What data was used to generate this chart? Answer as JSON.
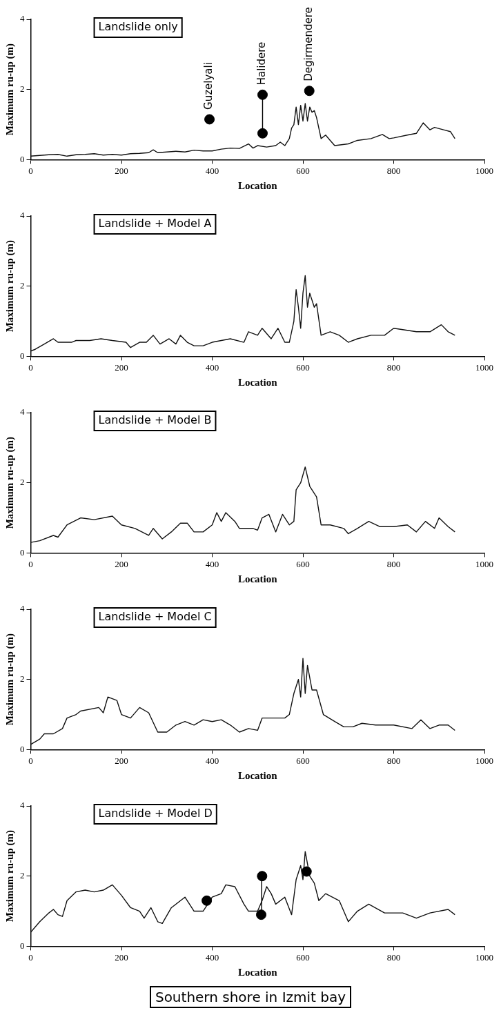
{
  "chart_data": [
    {
      "type": "line",
      "title": "Landslide only",
      "xlabel": "Location",
      "ylabel": "Maximum ru-up (m)",
      "xlim": [
        0,
        1000
      ],
      "xticks": [
        0,
        200,
        400,
        600,
        800,
        1000
      ],
      "ylim": [
        0,
        4
      ],
      "yticks": [
        0,
        2,
        4
      ],
      "annotations": [
        {
          "text": "Guzelyali",
          "x": 394,
          "y": 1.15
        },
        {
          "text": "Halidere",
          "x": 511,
          "y": 1.85
        },
        {
          "text": "Degirmendere",
          "x": 614,
          "y": 1.96
        }
      ],
      "series": [
        {
          "type": "line",
          "color": "#111111",
          "x": [
            0,
            20,
            40,
            60,
            80,
            100,
            120,
            140,
            160,
            180,
            200,
            220,
            240,
            260,
            270,
            280,
            300,
            320,
            340,
            360,
            380,
            400,
            420,
            440,
            460,
            480,
            490,
            500,
            520,
            540,
            550,
            560,
            570,
            575,
            580,
            585,
            590,
            595,
            600,
            605,
            610,
            615,
            620,
            625,
            630,
            640,
            650,
            660,
            670,
            700,
            720,
            750,
            775,
            790,
            800,
            830,
            850,
            865,
            880,
            890,
            910,
            925,
            935
          ],
          "values": [
            0.1,
            0.12,
            0.14,
            0.15,
            0.1,
            0.14,
            0.15,
            0.17,
            0.13,
            0.15,
            0.13,
            0.17,
            0.18,
            0.2,
            0.28,
            0.2,
            0.22,
            0.24,
            0.22,
            0.27,
            0.25,
            0.25,
            0.3,
            0.33,
            0.32,
            0.45,
            0.33,
            0.4,
            0.36,
            0.4,
            0.5,
            0.4,
            0.6,
            0.9,
            1.0,
            1.5,
            1.0,
            1.55,
            1.1,
            1.6,
            1.1,
            1.5,
            1.35,
            1.4,
            1.2,
            0.6,
            0.7,
            0.55,
            0.4,
            0.45,
            0.55,
            0.6,
            0.72,
            0.6,
            0.62,
            0.7,
            0.75,
            1.05,
            0.85,
            0.92,
            0.85,
            0.8,
            0.6
          ]
        },
        {
          "type": "scatter",
          "color": "#000000",
          "marker": "circle",
          "x": [
            394,
            511,
            511,
            614
          ],
          "values": [
            1.15,
            1.85,
            0.75,
            1.96
          ]
        },
        {
          "type": "line",
          "color": "#000000",
          "x": [
            511,
            511
          ],
          "values": [
            0.75,
            1.85
          ]
        }
      ]
    },
    {
      "type": "line",
      "title": "Landslide + Model A",
      "xlabel": "Location",
      "ylabel": "Maximum ru-up (m)",
      "xlim": [
        0,
        1000
      ],
      "xticks": [
        0,
        200,
        400,
        600,
        800,
        1000
      ],
      "ylim": [
        0,
        4
      ],
      "yticks": [
        0,
        2,
        4
      ],
      "series": [
        {
          "type": "line",
          "color": "#111111",
          "x": [
            0,
            10,
            30,
            50,
            60,
            90,
            100,
            130,
            155,
            180,
            210,
            220,
            240,
            255,
            270,
            285,
            305,
            320,
            330,
            345,
            360,
            380,
            400,
            440,
            470,
            480,
            500,
            510,
            530,
            545,
            560,
            570,
            580,
            585,
            590,
            595,
            600,
            605,
            610,
            615,
            625,
            630,
            640,
            660,
            680,
            700,
            720,
            750,
            780,
            800,
            850,
            880,
            905,
            920,
            935
          ],
          "values": [
            0.15,
            0.2,
            0.35,
            0.5,
            0.4,
            0.4,
            0.45,
            0.45,
            0.5,
            0.45,
            0.4,
            0.25,
            0.4,
            0.4,
            0.6,
            0.35,
            0.5,
            0.35,
            0.6,
            0.4,
            0.3,
            0.3,
            0.4,
            0.5,
            0.4,
            0.7,
            0.6,
            0.8,
            0.5,
            0.8,
            0.4,
            0.4,
            1.0,
            1.9,
            1.4,
            0.8,
            1.8,
            2.3,
            1.4,
            1.8,
            1.4,
            1.5,
            0.6,
            0.7,
            0.6,
            0.4,
            0.5,
            0.6,
            0.6,
            0.8,
            0.7,
            0.7,
            0.9,
            0.7,
            0.6
          ]
        }
      ]
    },
    {
      "type": "line",
      "title": "Landslide + Model B",
      "xlabel": "Location",
      "ylabel": "Maximum ru-up (m)",
      "xlim": [
        0,
        1000
      ],
      "xticks": [
        0,
        200,
        400,
        600,
        800,
        1000
      ],
      "ylim": [
        0,
        4
      ],
      "yticks": [
        0,
        2,
        4
      ],
      "series": [
        {
          "type": "line",
          "color": "#111111",
          "x": [
            0,
            20,
            50,
            60,
            80,
            110,
            140,
            180,
            200,
            230,
            260,
            270,
            290,
            310,
            330,
            345,
            360,
            380,
            400,
            410,
            420,
            430,
            450,
            460,
            490,
            500,
            510,
            525,
            540,
            555,
            570,
            580,
            585,
            595,
            605,
            615,
            630,
            640,
            660,
            690,
            700,
            720,
            745,
            770,
            800,
            830,
            850,
            870,
            890,
            900,
            920,
            935
          ],
          "values": [
            0.3,
            0.35,
            0.5,
            0.45,
            0.8,
            1.0,
            0.95,
            1.05,
            0.8,
            0.7,
            0.5,
            0.7,
            0.4,
            0.6,
            0.85,
            0.85,
            0.6,
            0.6,
            0.8,
            1.15,
            0.9,
            1.15,
            0.9,
            0.7,
            0.7,
            0.65,
            1.0,
            1.1,
            0.6,
            1.1,
            0.8,
            0.9,
            1.8,
            2.0,
            2.45,
            1.9,
            1.6,
            0.8,
            0.8,
            0.7,
            0.55,
            0.7,
            0.9,
            0.75,
            0.75,
            0.8,
            0.6,
            0.9,
            0.7,
            1.0,
            0.75,
            0.6
          ]
        }
      ]
    },
    {
      "type": "line",
      "title": "Landslide + Model C",
      "xlabel": "Location",
      "ylabel": "Maximum ru-up (m)",
      "xlim": [
        0,
        1000
      ],
      "xticks": [
        0,
        200,
        400,
        600,
        800,
        1000
      ],
      "ylim": [
        0,
        4
      ],
      "yticks": [
        0,
        2,
        4
      ],
      "series": [
        {
          "type": "line",
          "color": "#111111",
          "x": [
            0,
            20,
            30,
            50,
            70,
            80,
            100,
            110,
            150,
            160,
            170,
            190,
            200,
            220,
            240,
            260,
            280,
            300,
            320,
            340,
            360,
            380,
            400,
            420,
            440,
            460,
            480,
            500,
            510,
            540,
            560,
            570,
            580,
            590,
            595,
            600,
            605,
            610,
            620,
            630,
            645,
            670,
            690,
            710,
            730,
            760,
            800,
            840,
            860,
            880,
            900,
            920,
            935
          ],
          "values": [
            0.15,
            0.3,
            0.45,
            0.45,
            0.6,
            0.9,
            1.0,
            1.1,
            1.2,
            1.05,
            1.5,
            1.4,
            1.0,
            0.9,
            1.2,
            1.05,
            0.5,
            0.5,
            0.7,
            0.8,
            0.7,
            0.85,
            0.8,
            0.85,
            0.7,
            0.5,
            0.6,
            0.55,
            0.9,
            0.9,
            0.9,
            1.0,
            1.6,
            2.0,
            1.5,
            2.6,
            1.6,
            2.4,
            1.7,
            1.7,
            1.0,
            0.8,
            0.65,
            0.65,
            0.75,
            0.7,
            0.7,
            0.6,
            0.85,
            0.6,
            0.7,
            0.7,
            0.55
          ]
        }
      ]
    },
    {
      "type": "line",
      "title": "Landslide + Model D",
      "xlabel": "Location",
      "ylabel": "Maximum ru-up (m)",
      "xlim": [
        0,
        1000
      ],
      "xticks": [
        0,
        200,
        400,
        600,
        800,
        1000
      ],
      "ylim": [
        0,
        4
      ],
      "yticks": [
        0,
        2,
        4
      ],
      "annotations": [
        "Southern shore in Izmit bay"
      ],
      "series": [
        {
          "type": "line",
          "color": "#111111",
          "x": [
            0,
            20,
            40,
            50,
            60,
            70,
            80,
            100,
            120,
            140,
            160,
            180,
            200,
            220,
            240,
            250,
            265,
            280,
            290,
            310,
            340,
            360,
            380,
            400,
            420,
            430,
            450,
            470,
            480,
            500,
            510,
            520,
            530,
            540,
            560,
            575,
            585,
            595,
            600,
            605,
            615,
            625,
            635,
            650,
            680,
            700,
            720,
            745,
            780,
            820,
            850,
            880,
            920,
            935
          ],
          "values": [
            0.4,
            0.7,
            0.95,
            1.05,
            0.9,
            0.85,
            1.3,
            1.55,
            1.6,
            1.55,
            1.6,
            1.75,
            1.45,
            1.1,
            1.0,
            0.8,
            1.1,
            0.7,
            0.65,
            1.1,
            1.4,
            1.0,
            1.0,
            1.4,
            1.5,
            1.75,
            1.7,
            1.2,
            1.0,
            1.0,
            1.3,
            1.7,
            1.5,
            1.2,
            1.4,
            0.9,
            1.9,
            2.3,
            1.9,
            2.7,
            2.0,
            1.8,
            1.3,
            1.5,
            1.3,
            0.7,
            1.0,
            1.2,
            0.95,
            0.95,
            0.8,
            0.95,
            1.05,
            0.9
          ]
        },
        {
          "type": "scatter",
          "color": "#000000",
          "marker": "circle",
          "x": [
            388,
            510,
            508,
            608
          ],
          "values": [
            1.3,
            2.0,
            0.9,
            2.13
          ]
        },
        {
          "type": "line",
          "color": "#000000",
          "x": [
            509,
            509
          ],
          "values": [
            0.9,
            2.0
          ]
        }
      ]
    }
  ]
}
